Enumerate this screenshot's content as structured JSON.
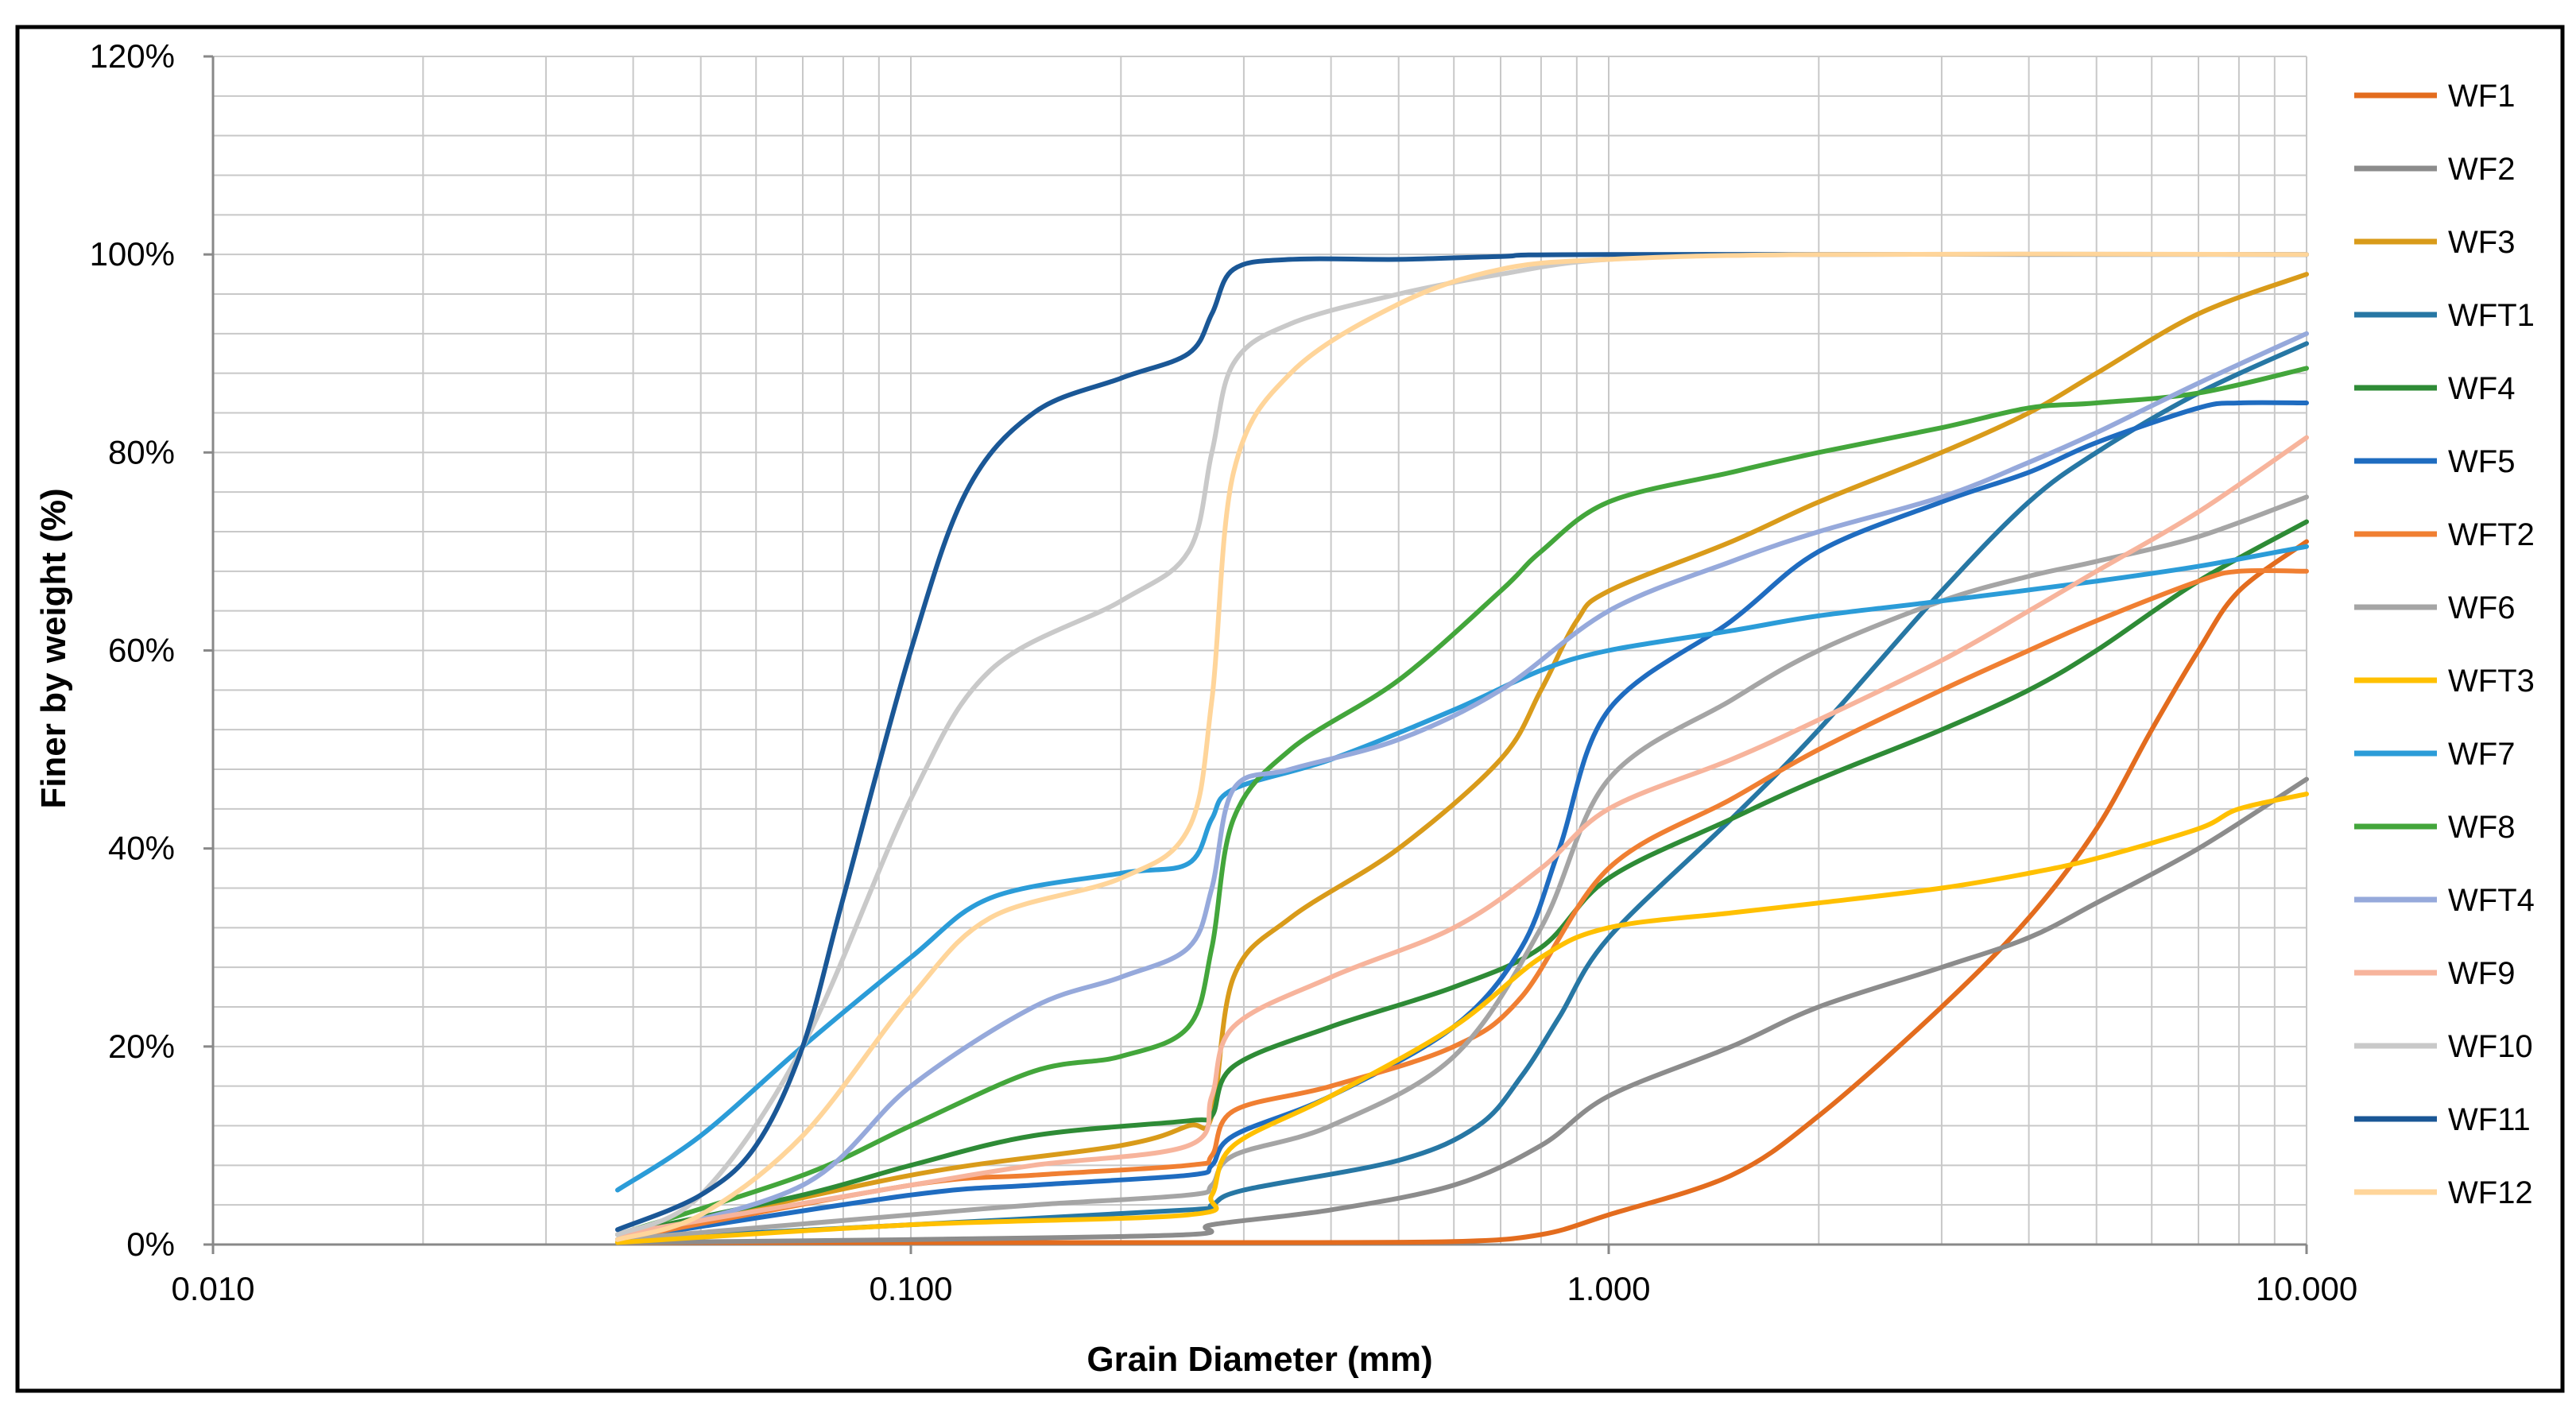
{
  "chart_data": {
    "type": "line",
    "title": "",
    "xlabel": "Grain Diameter (mm)",
    "ylabel": "Finer by weight (%)",
    "x_scale": "log",
    "xlim": [
      0.01,
      10
    ],
    "ylim": [
      0,
      120
    ],
    "x_ticks": [
      0.01,
      0.1,
      1,
      10
    ],
    "x_tick_labels": [
      "0.010",
      "0.100",
      "1.000",
      "10.000"
    ],
    "y_ticks": [
      0,
      20,
      40,
      60,
      80,
      100,
      120
    ],
    "y_tick_labels": [
      "0%",
      "20%",
      "40%",
      "60%",
      "80%",
      "100%",
      "120%"
    ],
    "grid": true,
    "legend_position": "right",
    "series": [
      {
        "name": "WF1",
        "color": "#E36C1E",
        "points": [
          [
            0.038,
            0.2
          ],
          [
            0.1,
            0.2
          ],
          [
            0.3,
            0.2
          ],
          [
            0.6,
            0.3
          ],
          [
            0.8,
            1
          ],
          [
            1,
            3
          ],
          [
            1.5,
            7
          ],
          [
            2,
            13
          ],
          [
            3,
            24
          ],
          [
            4,
            33
          ],
          [
            5,
            42
          ],
          [
            6,
            52
          ],
          [
            7,
            60
          ],
          [
            8,
            66
          ],
          [
            10,
            71
          ]
        ]
      },
      {
        "name": "WF2",
        "color": "#8C8C8C",
        "points": [
          [
            0.038,
            0.2
          ],
          [
            0.1,
            0.5
          ],
          [
            0.25,
            1
          ],
          [
            0.27,
            2
          ],
          [
            0.4,
            3.5
          ],
          [
            0.6,
            6
          ],
          [
            0.8,
            10
          ],
          [
            1,
            15
          ],
          [
            1.5,
            20
          ],
          [
            2,
            24
          ],
          [
            3,
            28
          ],
          [
            4,
            31
          ],
          [
            5,
            34.5
          ],
          [
            7,
            40
          ],
          [
            10,
            47
          ]
        ]
      },
      {
        "name": "WF3",
        "color": "#D99B1A",
        "points": [
          [
            0.038,
            0.5
          ],
          [
            0.1,
            7
          ],
          [
            0.2,
            10
          ],
          [
            0.25,
            12
          ],
          [
            0.27,
            13
          ],
          [
            0.29,
            27
          ],
          [
            0.35,
            33
          ],
          [
            0.5,
            40
          ],
          [
            0.7,
            49
          ],
          [
            0.8,
            56
          ],
          [
            0.9,
            63
          ],
          [
            1,
            66
          ],
          [
            1.5,
            71
          ],
          [
            2,
            75
          ],
          [
            3,
            80
          ],
          [
            4,
            84
          ],
          [
            5,
            88
          ],
          [
            7,
            94
          ],
          [
            10,
            98
          ]
        ]
      },
      {
        "name": "WFT1",
        "color": "#2777A4",
        "points": [
          [
            0.038,
            0.5
          ],
          [
            0.1,
            2
          ],
          [
            0.25,
            3.5
          ],
          [
            0.27,
            4
          ],
          [
            0.3,
            5.5
          ],
          [
            0.5,
            8.5
          ],
          [
            0.65,
            12
          ],
          [
            0.75,
            17
          ],
          [
            0.85,
            23
          ],
          [
            1,
            31
          ],
          [
            1.5,
            43
          ],
          [
            2,
            52
          ],
          [
            3,
            66
          ],
          [
            4,
            75
          ],
          [
            5,
            80
          ],
          [
            7,
            86
          ],
          [
            10,
            91
          ]
        ]
      },
      {
        "name": "WF4",
        "color": "#2E8B36",
        "points": [
          [
            0.038,
            1
          ],
          [
            0.07,
            5
          ],
          [
            0.1,
            8
          ],
          [
            0.15,
            11
          ],
          [
            0.25,
            12.5
          ],
          [
            0.27,
            13
          ],
          [
            0.29,
            18
          ],
          [
            0.4,
            22
          ],
          [
            0.6,
            26
          ],
          [
            0.8,
            30
          ],
          [
            1,
            37
          ],
          [
            1.5,
            43
          ],
          [
            2,
            47
          ],
          [
            3,
            52
          ],
          [
            4,
            56
          ],
          [
            5,
            60
          ],
          [
            7,
            67
          ],
          [
            10,
            73
          ]
        ]
      },
      {
        "name": "WF5",
        "color": "#1F6CC0",
        "points": [
          [
            0.038,
            0.5
          ],
          [
            0.1,
            5
          ],
          [
            0.15,
            6
          ],
          [
            0.25,
            7
          ],
          [
            0.27,
            8
          ],
          [
            0.29,
            11
          ],
          [
            0.4,
            15
          ],
          [
            0.6,
            22
          ],
          [
            0.75,
            30
          ],
          [
            0.85,
            40
          ],
          [
            1,
            54
          ],
          [
            1.5,
            63
          ],
          [
            2,
            70
          ],
          [
            3,
            75
          ],
          [
            4,
            78
          ],
          [
            5,
            81
          ],
          [
            7,
            84.5
          ],
          [
            8,
            85
          ],
          [
            10,
            85
          ]
        ]
      },
      {
        "name": "WFT2",
        "color": "#F07F32",
        "points": [
          [
            0.038,
            0.5
          ],
          [
            0.1,
            6
          ],
          [
            0.15,
            7
          ],
          [
            0.25,
            8
          ],
          [
            0.27,
            9
          ],
          [
            0.29,
            13.5
          ],
          [
            0.4,
            16
          ],
          [
            0.6,
            20
          ],
          [
            0.75,
            25
          ],
          [
            1,
            38
          ],
          [
            1.5,
            45
          ],
          [
            2,
            50
          ],
          [
            3,
            56
          ],
          [
            4,
            60
          ],
          [
            5,
            63
          ],
          [
            7,
            67
          ],
          [
            8,
            68
          ],
          [
            10,
            68
          ]
        ]
      },
      {
        "name": "WF6",
        "color": "#A5A5A5",
        "points": [
          [
            0.038,
            0.5
          ],
          [
            0.1,
            3
          ],
          [
            0.15,
            4
          ],
          [
            0.25,
            5
          ],
          [
            0.27,
            6
          ],
          [
            0.29,
            9
          ],
          [
            0.4,
            12
          ],
          [
            0.6,
            19
          ],
          [
            0.8,
            32
          ],
          [
            1,
            47
          ],
          [
            1.5,
            55
          ],
          [
            2,
            60
          ],
          [
            3,
            65
          ],
          [
            4,
            67.5
          ],
          [
            5,
            69
          ],
          [
            7,
            71.5
          ],
          [
            10,
            75.5
          ]
        ]
      },
      {
        "name": "WFT3",
        "color": "#FFC000",
        "points": [
          [
            0.038,
            0.2
          ],
          [
            0.1,
            2
          ],
          [
            0.25,
            3
          ],
          [
            0.27,
            5
          ],
          [
            0.29,
            10
          ],
          [
            0.4,
            15
          ],
          [
            0.6,
            22
          ],
          [
            0.8,
            29
          ],
          [
            1,
            32
          ],
          [
            1.5,
            33.5
          ],
          [
            2,
            34.5
          ],
          [
            3,
            36
          ],
          [
            4,
            37.5
          ],
          [
            5,
            39
          ],
          [
            7,
            42
          ],
          [
            8,
            44
          ],
          [
            10,
            45.5
          ]
        ]
      },
      {
        "name": "WF7",
        "color": "#2B9CD8",
        "points": [
          [
            0.038,
            5.5
          ],
          [
            0.05,
            11
          ],
          [
            0.07,
            20
          ],
          [
            0.1,
            29
          ],
          [
            0.13,
            35
          ],
          [
            0.2,
            37.5
          ],
          [
            0.25,
            38.5
          ],
          [
            0.27,
            43
          ],
          [
            0.29,
            46
          ],
          [
            0.4,
            49
          ],
          [
            0.6,
            54
          ],
          [
            0.8,
            58
          ],
          [
            1,
            60
          ],
          [
            1.5,
            62
          ],
          [
            2,
            63.5
          ],
          [
            3,
            65
          ],
          [
            5,
            67
          ],
          [
            7,
            68.5
          ],
          [
            10,
            70.5
          ]
        ]
      },
      {
        "name": "WF8",
        "color": "#43A63B",
        "points": [
          [
            0.038,
            1
          ],
          [
            0.07,
            7
          ],
          [
            0.1,
            12
          ],
          [
            0.15,
            17.5
          ],
          [
            0.2,
            19
          ],
          [
            0.25,
            22
          ],
          [
            0.27,
            30
          ],
          [
            0.29,
            43
          ],
          [
            0.35,
            50
          ],
          [
            0.5,
            57
          ],
          [
            0.7,
            66
          ],
          [
            0.8,
            70
          ],
          [
            1,
            75
          ],
          [
            1.5,
            78
          ],
          [
            2,
            80
          ],
          [
            3,
            82.5
          ],
          [
            4,
            84.5
          ],
          [
            5,
            85
          ],
          [
            7,
            86
          ],
          [
            10,
            88.5
          ]
        ]
      },
      {
        "name": "WFT4",
        "color": "#96A9DB",
        "points": [
          [
            0.038,
            0.5
          ],
          [
            0.07,
            6
          ],
          [
            0.1,
            16
          ],
          [
            0.15,
            24
          ],
          [
            0.2,
            27
          ],
          [
            0.25,
            30
          ],
          [
            0.27,
            36
          ],
          [
            0.29,
            46
          ],
          [
            0.35,
            48
          ],
          [
            0.5,
            51
          ],
          [
            0.7,
            56
          ],
          [
            1,
            64
          ],
          [
            1.5,
            69
          ],
          [
            2,
            72
          ],
          [
            3,
            75.5
          ],
          [
            4,
            79
          ],
          [
            5,
            82
          ],
          [
            7,
            87
          ],
          [
            10,
            92
          ]
        ]
      },
      {
        "name": "WF9",
        "color": "#F7B49C",
        "points": [
          [
            0.038,
            1
          ],
          [
            0.1,
            6
          ],
          [
            0.15,
            8
          ],
          [
            0.25,
            10
          ],
          [
            0.27,
            15
          ],
          [
            0.29,
            22
          ],
          [
            0.4,
            27
          ],
          [
            0.6,
            32
          ],
          [
            0.8,
            38
          ],
          [
            1,
            44
          ],
          [
            1.5,
            49
          ],
          [
            2,
            53
          ],
          [
            3,
            59
          ],
          [
            4,
            64
          ],
          [
            5,
            68
          ],
          [
            7,
            74
          ],
          [
            10,
            81.5
          ]
        ]
      },
      {
        "name": "WF10",
        "color": "#C9C9C9",
        "points": [
          [
            0.038,
            1
          ],
          [
            0.05,
            5
          ],
          [
            0.07,
            20
          ],
          [
            0.1,
            45
          ],
          [
            0.13,
            58
          ],
          [
            0.2,
            65
          ],
          [
            0.25,
            70
          ],
          [
            0.27,
            80
          ],
          [
            0.29,
            89
          ],
          [
            0.35,
            93
          ],
          [
            0.5,
            96
          ],
          [
            0.7,
            98
          ],
          [
            1,
            99.5
          ],
          [
            2,
            100
          ],
          [
            10,
            100
          ]
        ]
      },
      {
        "name": "WF11",
        "color": "#1A5796",
        "points": [
          [
            0.038,
            1.5
          ],
          [
            0.05,
            5
          ],
          [
            0.06,
            10
          ],
          [
            0.07,
            20
          ],
          [
            0.08,
            35
          ],
          [
            0.1,
            60
          ],
          [
            0.12,
            76
          ],
          [
            0.15,
            84
          ],
          [
            0.2,
            87.5
          ],
          [
            0.25,
            90
          ],
          [
            0.27,
            94
          ],
          [
            0.29,
            98.5
          ],
          [
            0.35,
            99.5
          ],
          [
            0.5,
            99.5
          ],
          [
            0.7,
            99.8
          ],
          [
            1,
            100
          ],
          [
            10,
            100
          ]
        ]
      },
      {
        "name": "WF12",
        "color": "#FFD59A",
        "points": [
          [
            0.038,
            0.5
          ],
          [
            0.05,
            3
          ],
          [
            0.07,
            11
          ],
          [
            0.1,
            25
          ],
          [
            0.13,
            33
          ],
          [
            0.2,
            37
          ],
          [
            0.25,
            42
          ],
          [
            0.27,
            55
          ],
          [
            0.29,
            78
          ],
          [
            0.35,
            88
          ],
          [
            0.5,
            95
          ],
          [
            0.7,
            98.5
          ],
          [
            1,
            99.5
          ],
          [
            2,
            100
          ],
          [
            10,
            100
          ]
        ]
      }
    ]
  }
}
